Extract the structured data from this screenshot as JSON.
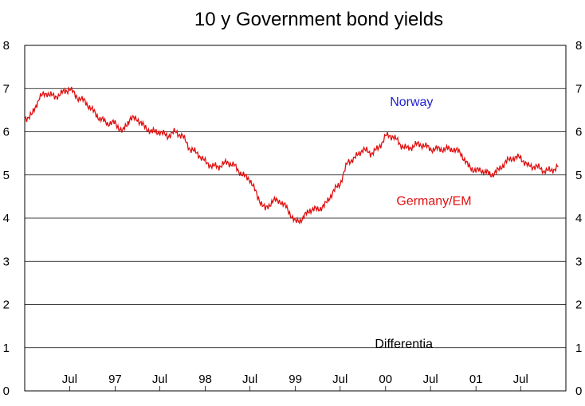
{
  "chart_data": {
    "type": "line",
    "title": "10 y Government bond yields",
    "xlabel": "",
    "ylabel": "",
    "ylim": [
      0,
      8
    ],
    "y_ticks_left": [
      "0",
      "1",
      "2",
      "3",
      "4",
      "5",
      "6",
      "7",
      "8"
    ],
    "y_ticks_right": [
      "0",
      "1",
      "2",
      "3",
      "4",
      "5",
      "6",
      "7",
      "8"
    ],
    "grid": "horizontal",
    "x_range": [
      "1996-01-01",
      "2001-12-31"
    ],
    "x_tick_labels": [
      {
        "label": "Jul",
        "date": "1996-07-01"
      },
      {
        "label": "97",
        "date": "1997-01-01"
      },
      {
        "label": "Jul",
        "date": "1997-07-01"
      },
      {
        "label": "98",
        "date": "1998-01-01"
      },
      {
        "label": "Jul",
        "date": "1998-07-01"
      },
      {
        "label": "99",
        "date": "1999-01-01"
      },
      {
        "label": "Jul",
        "date": "1999-07-01"
      },
      {
        "label": "00",
        "date": "2000-01-01"
      },
      {
        "label": "Jul",
        "date": "2000-07-01"
      },
      {
        "label": "01",
        "date": "2001-01-01"
      },
      {
        "label": "Jul",
        "date": "2001-07-01"
      }
    ],
    "annotations": [
      {
        "text": "Norway",
        "color": "#1f1fd0",
        "x": "2000-04-15",
        "y": 6.6
      },
      {
        "text": "Germany/EM",
        "color": "#e01010",
        "x": "2000-07-15",
        "y": 4.3
      },
      {
        "text": "Differentia",
        "color": "#000000",
        "x": "2000-03-15",
        "y": 1.0
      }
    ],
    "series": [
      {
        "name": "Germany/EM",
        "color": "#e01010",
        "x": [
          "1996-01-01",
          "1996-02-01",
          "1996-03-01",
          "1996-04-01",
          "1996-05-01",
          "1996-06-01",
          "1996-07-01",
          "1996-08-01",
          "1996-09-01",
          "1996-10-01",
          "1996-11-01",
          "1996-12-01",
          "1997-01-01",
          "1997-02-01",
          "1997-03-01",
          "1997-04-01",
          "1997-05-01",
          "1997-06-01",
          "1997-07-01",
          "1997-08-01",
          "1997-09-01",
          "1997-10-01",
          "1997-11-01",
          "1997-12-01",
          "1998-01-01",
          "1998-02-01",
          "1998-03-01",
          "1998-04-01",
          "1998-05-01",
          "1998-06-01",
          "1998-07-01",
          "1998-08-01",
          "1998-09-01",
          "1998-10-01",
          "1998-11-01",
          "1998-12-01",
          "1999-01-01",
          "1999-02-01",
          "1999-03-01",
          "1999-04-01",
          "1999-05-01",
          "1999-06-01",
          "1999-07-01",
          "1999-08-01",
          "1999-09-01",
          "1999-10-01",
          "1999-11-01",
          "1999-12-01",
          "2000-01-01",
          "2000-02-01",
          "2000-03-01",
          "2000-04-01",
          "2000-05-01",
          "2000-06-01",
          "2000-07-01",
          "2000-08-01",
          "2000-09-01",
          "2000-10-01",
          "2000-11-01",
          "2000-12-01",
          "2001-01-01",
          "2001-02-01",
          "2001-03-01",
          "2001-04-01",
          "2001-05-01",
          "2001-06-01",
          "2001-07-01",
          "2001-08-01",
          "2001-09-01",
          "2001-10-01",
          "2001-11-01",
          "2001-12-01"
        ],
        "values": [
          6.3,
          6.4,
          6.8,
          6.9,
          6.8,
          6.9,
          7.0,
          6.8,
          6.7,
          6.5,
          6.3,
          6.2,
          6.2,
          6.0,
          6.3,
          6.3,
          6.1,
          6.0,
          6.0,
          5.9,
          6.0,
          5.9,
          5.6,
          5.5,
          5.3,
          5.2,
          5.2,
          5.3,
          5.2,
          5.0,
          4.9,
          4.5,
          4.2,
          4.4,
          4.4,
          4.2,
          3.9,
          4.0,
          4.2,
          4.2,
          4.3,
          4.6,
          4.8,
          5.3,
          5.4,
          5.6,
          5.5,
          5.6,
          5.9,
          5.9,
          5.7,
          5.6,
          5.7,
          5.7,
          5.6,
          5.6,
          5.6,
          5.6,
          5.5,
          5.2,
          5.1,
          5.1,
          5.0,
          5.1,
          5.3,
          5.4,
          5.4,
          5.2,
          5.2,
          5.1,
          5.1,
          5.2
        ]
      }
    ]
  }
}
